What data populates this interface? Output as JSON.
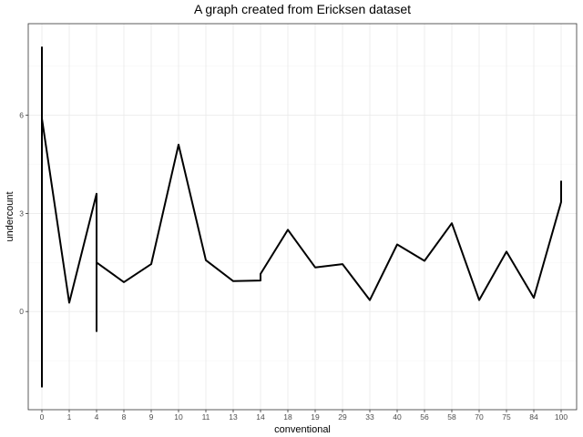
{
  "chart_data": {
    "type": "line",
    "title": "A graph created from Ericksen dataset",
    "xlabel": "conventional",
    "ylabel": "undercount",
    "categories": [
      "0",
      "1",
      "4",
      "8",
      "9",
      "10",
      "11",
      "13",
      "14",
      "18",
      "19",
      "29",
      "33",
      "40",
      "56",
      "58",
      "70",
      "75",
      "84",
      "100"
    ],
    "y_ticks": [
      0,
      3,
      6
    ],
    "ylim": [
      -3.0,
      8.8
    ],
    "grid": true,
    "series": [
      {
        "points": [
          {
            "x": "0",
            "y": 8.1
          },
          {
            "x": "0",
            "y": -2.3
          },
          {
            "x": "0",
            "y": 5.9
          },
          {
            "x": "1",
            "y": 0.27
          },
          {
            "x": "4",
            "y": 3.6
          },
          {
            "x": "4",
            "y": -0.6
          },
          {
            "x": "4",
            "y": 1.5
          },
          {
            "x": "8",
            "y": 0.9
          },
          {
            "x": "9",
            "y": 1.45
          },
          {
            "x": "10",
            "y": 5.1
          },
          {
            "x": "11",
            "y": 1.57
          },
          {
            "x": "13",
            "y": 0.93
          },
          {
            "x": "14",
            "y": 0.95
          },
          {
            "x": "14",
            "y": 1.15
          },
          {
            "x": "18",
            "y": 2.5
          },
          {
            "x": "19",
            "y": 1.35
          },
          {
            "x": "29",
            "y": 1.45
          },
          {
            "x": "33",
            "y": 0.35
          },
          {
            "x": "40",
            "y": 2.05
          },
          {
            "x": "56",
            "y": 1.55
          },
          {
            "x": "58",
            "y": 2.7
          },
          {
            "x": "70",
            "y": 0.35
          },
          {
            "x": "75",
            "y": 1.83
          },
          {
            "x": "84",
            "y": 0.42
          },
          {
            "x": "100",
            "y": 3.35
          },
          {
            "x": "100",
            "y": 4.0
          }
        ]
      }
    ]
  }
}
